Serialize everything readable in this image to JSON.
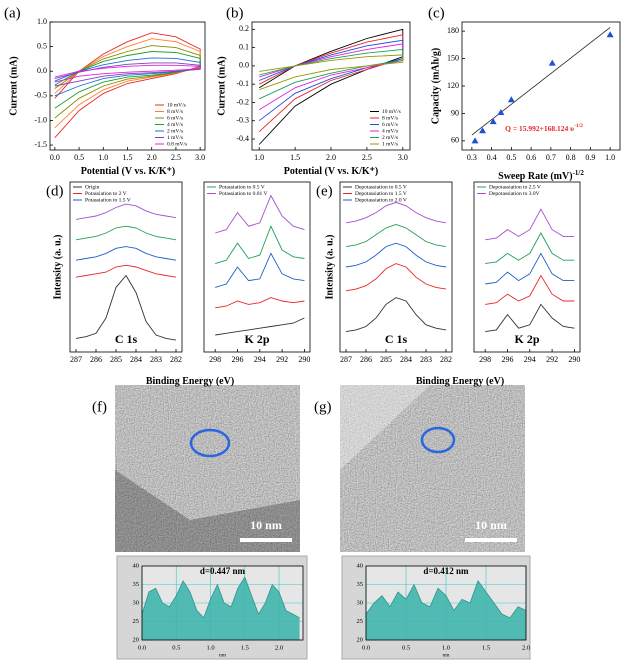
{
  "chart_data": [
    {
      "type": "line",
      "panel": "(a)",
      "xlabel": "Potential (V vs. K/K⁺)",
      "ylabel": "Current (mA)",
      "x": [
        0,
        0.5,
        1,
        1.5,
        2,
        2.5,
        3,
        3,
        2.5,
        2,
        1.5,
        1,
        0.5,
        0
      ],
      "xlim": [
        -0.1,
        3.1
      ],
      "xticks": [
        {
          "value": 0,
          "label": "0.0"
        },
        0.5,
        {
          "value": 1,
          "label": "1.0"
        },
        1.5,
        {
          "value": 2,
          "label": "2.0"
        },
        2.5,
        {
          "value": 3,
          "label": "3.0"
        }
      ],
      "ylim": [
        -1.6,
        1.0
      ],
      "yticks": [
        -1.5,
        {
          "value": -1,
          "label": "-1.0"
        },
        -0.5,
        {
          "value": 0,
          "label": "0.0"
        },
        0.5,
        {
          "value": 1,
          "label": "1.0"
        }
      ],
      "legend": "lower right",
      "series": [
        {
          "name": "10 mV/s",
          "color": "#e8262a",
          "values": [
            -0.55,
            0.0,
            0.35,
            0.6,
            0.78,
            0.7,
            0.45,
            0.1,
            -0.05,
            -0.15,
            -0.25,
            -0.45,
            -0.8,
            -1.35
          ]
        },
        {
          "name": "8 mV/s",
          "color": "#ff7f27",
          "values": [
            -0.45,
            0.0,
            0.3,
            0.5,
            0.66,
            0.6,
            0.4,
            0.08,
            -0.04,
            -0.12,
            -0.2,
            -0.38,
            -0.68,
            -1.15
          ]
        },
        {
          "name": "6 mV/s",
          "color": "#8a8a00",
          "values": [
            -0.35,
            0.0,
            0.25,
            0.4,
            0.52,
            0.48,
            0.32,
            0.07,
            -0.03,
            -0.1,
            -0.16,
            -0.3,
            -0.55,
            -0.95
          ]
        },
        {
          "name": "4 mV/s",
          "color": "#22a02c",
          "values": [
            -0.28,
            0.0,
            0.2,
            0.32,
            0.4,
            0.38,
            0.26,
            0.06,
            -0.02,
            -0.08,
            -0.12,
            -0.22,
            -0.42,
            -0.75
          ]
        },
        {
          "name": "2 mV/s",
          "color": "#1e6fd9",
          "values": [
            -0.2,
            0.0,
            0.13,
            0.22,
            0.27,
            0.26,
            0.18,
            0.05,
            -0.01,
            -0.05,
            -0.08,
            -0.15,
            -0.3,
            -0.5
          ]
        },
        {
          "name": "1 mV/s",
          "color": "#7f3fbf",
          "values": [
            -0.15,
            -0.02,
            0.08,
            0.14,
            0.17,
            0.17,
            0.12,
            0.04,
            0.0,
            -0.03,
            -0.05,
            -0.1,
            -0.2,
            -0.3
          ]
        },
        {
          "name": "0.8 mV/s",
          "color": "#e020e0",
          "values": [
            -0.12,
            0.0,
            0.06,
            0.1,
            0.12,
            0.12,
            0.1,
            0.05,
            0.02,
            0.0,
            -0.02,
            -0.05,
            -0.1,
            -0.22
          ]
        }
      ]
    },
    {
      "type": "line",
      "panel": "(b)",
      "xlabel": "Potential (V vs. K/K⁺)",
      "ylabel": "Current (mA)",
      "x": [
        1,
        1.5,
        2,
        2.5,
        3,
        3,
        2.5,
        2,
        1.5,
        1
      ],
      "xlim": [
        0.9,
        3.1
      ],
      "xticks": [
        {
          "value": 1,
          "label": "1.0"
        },
        1.5,
        {
          "value": 2,
          "label": "2.0"
        },
        2.5,
        {
          "value": 3,
          "label": "3.0"
        }
      ],
      "ylim": [
        -0.46,
        0.24
      ],
      "yticks": [
        -0.4,
        -0.3,
        -0.2,
        -0.1,
        {
          "value": 0,
          "label": "0.0"
        },
        0.1,
        0.2
      ],
      "legend": "lower right",
      "series": [
        {
          "name": "10 mV/s",
          "color": "#000000",
          "values": [
            -0.12,
            0.0,
            0.08,
            0.15,
            0.2,
            0.05,
            -0.02,
            -0.1,
            -0.22,
            -0.43
          ]
        },
        {
          "name": "8 mV/s",
          "color": "#e8262a",
          "values": [
            -0.1,
            0.0,
            0.07,
            0.13,
            0.17,
            0.04,
            -0.02,
            -0.08,
            -0.18,
            -0.36
          ]
        },
        {
          "name": "6 mV/s",
          "color": "#1e4fd9",
          "values": [
            -0.08,
            0.0,
            0.06,
            0.11,
            0.14,
            0.04,
            -0.01,
            -0.07,
            -0.15,
            -0.3
          ]
        },
        {
          "name": "4 mV/s",
          "color": "#e020e0",
          "values": [
            -0.06,
            0.0,
            0.05,
            0.09,
            0.12,
            0.03,
            -0.01,
            -0.05,
            -0.12,
            -0.24
          ]
        },
        {
          "name": "2 mV/s",
          "color": "#1ca05a",
          "values": [
            -0.05,
            0.0,
            0.04,
            0.07,
            0.09,
            0.03,
            0.0,
            -0.04,
            -0.09,
            -0.18
          ]
        },
        {
          "name": "1 mV/s",
          "color": "#9a9a00",
          "values": [
            -0.03,
            0.0,
            0.03,
            0.05,
            0.06,
            0.02,
            0.0,
            -0.02,
            -0.06,
            -0.13
          ]
        }
      ]
    },
    {
      "type": "scatter",
      "panel": "(c)",
      "xlabel": "Sweep Rate (mV)",
      "xlabel_sup": "-1/2",
      "ylabel": "Capacity (mAh/g)",
      "annotation": "Q = 15.992+168.124 υ",
      "annotation_sup": "-1/2",
      "x": [
        0.316,
        0.354,
        0.408,
        0.447,
        0.5,
        0.707,
        1.0
      ],
      "values": [
        60,
        71,
        81,
        91,
        105,
        145,
        176
      ],
      "color": "#1f4fd6",
      "fit": {
        "x": [
          0.3,
          1.0
        ],
        "values": [
          66.4,
          184.1
        ]
      },
      "xlim": [
        0.25,
        1.05
      ],
      "xticks": [
        0.3,
        0.4,
        0.5,
        0.6,
        0.7,
        0.8,
        0.9,
        {
          "value": 1,
          "label": "1.0"
        }
      ],
      "ylim": [
        50,
        190
      ],
      "yticks": [
        60,
        90,
        120,
        150,
        180
      ]
    },
    {
      "type": "line",
      "panel": "(d)",
      "label": "C 1s",
      "xlabel": "Binding Energy (eV)",
      "ylabel": "Intensity (a. u.)",
      "x": [
        287,
        286.5,
        286,
        285.5,
        285,
        284.5,
        284,
        283.5,
        283,
        282.5,
        282
      ],
      "xlim": [
        287.3,
        281.7
      ],
      "xticks": [
        287,
        286,
        285,
        284,
        283,
        282
      ],
      "ylim": [
        0,
        100
      ],
      "legend": "upper left",
      "series": [
        {
          "name": "Origin",
          "color": "#333333",
          "values": [
            8,
            9,
            11,
            20,
            38,
            45,
            35,
            18,
            10,
            8,
            7
          ]
        },
        {
          "name": "Potassiation to 2 V",
          "color": "#e8262a",
          "values": [
            44,
            45,
            46,
            47,
            50,
            51,
            50,
            48,
            46,
            45,
            44
          ]
        },
        {
          "name": "Potassiation to 1.5 V",
          "color": "#1e5fc9",
          "values": [
            54,
            55,
            56,
            58,
            61,
            62,
            61,
            58,
            56,
            55,
            54
          ]
        },
        {
          "color": "#22a05a",
          "values": [
            66,
            67,
            68,
            70,
            73,
            74,
            73,
            70,
            68,
            67,
            66
          ]
        },
        {
          "color": "#a64fd0",
          "values": [
            78,
            79,
            80,
            82,
            85,
            87,
            86,
            83,
            81,
            80,
            79
          ]
        }
      ]
    },
    {
      "type": "line",
      "label": "K 2p",
      "x": [
        298,
        297,
        296,
        295,
        294,
        293,
        292,
        291,
        290
      ],
      "xlim": [
        299,
        289.5
      ],
      "xticks": [
        298,
        296,
        294,
        292,
        290
      ],
      "ylim": [
        0,
        100
      ],
      "legend": "upper left",
      "series": [
        {
          "color": "#333333",
          "values": [
            10,
            11,
            12,
            13,
            14,
            15,
            16,
            17,
            20
          ]
        },
        {
          "color": "#e8262a",
          "values": [
            26,
            27,
            30,
            28,
            29,
            32,
            30,
            29,
            30
          ]
        },
        {
          "color": "#1e5fc9",
          "values": [
            38,
            40,
            50,
            42,
            43,
            58,
            46,
            43,
            42
          ]
        },
        {
          "name": "Potassiation to 0.5 V",
          "color": "#22a05a",
          "values": [
            52,
            54,
            64,
            55,
            57,
            74,
            60,
            56,
            55
          ]
        },
        {
          "name": "Potassiation to 0.01 V",
          "color": "#a64fd0",
          "values": [
            70,
            72,
            82,
            74,
            76,
            92,
            80,
            74,
            72
          ]
        }
      ]
    },
    {
      "type": "line",
      "panel": "(e)",
      "label": "C 1s",
      "xlabel": "Binding Energy (eV)",
      "ylabel": "Intensity (a. u.)",
      "x": [
        287,
        286.5,
        286,
        285.5,
        285,
        284.5,
        284,
        283.5,
        283,
        282.5,
        282
      ],
      "xlim": [
        287.3,
        281.7
      ],
      "xticks": [
        287,
        286,
        285,
        284,
        283,
        282
      ],
      "ylim": [
        0,
        100
      ],
      "legend": "upper left",
      "series": [
        {
          "name": "Depotassiation to 0.5 V",
          "color": "#333333",
          "values": [
            12,
            13,
            15,
            20,
            28,
            32,
            30,
            22,
            16,
            14,
            13
          ]
        },
        {
          "name": "Depotassiation to 1.5 V",
          "color": "#e8262a",
          "values": [
            36,
            37,
            39,
            43,
            49,
            52,
            50,
            44,
            40,
            38,
            37
          ]
        },
        {
          "name": "Depotassiation to 2.0 V",
          "color": "#1e5fc9",
          "values": [
            50,
            51,
            53,
            57,
            62,
            64,
            62,
            57,
            53,
            51,
            50
          ]
        },
        {
          "color": "#22a05a",
          "values": [
            62,
            63,
            65,
            69,
            73,
            75,
            73,
            69,
            65,
            63,
            62
          ]
        },
        {
          "color": "#a64fd0",
          "values": [
            76,
            77,
            79,
            82,
            86,
            88,
            86,
            82,
            79,
            77,
            76
          ]
        }
      ]
    },
    {
      "type": "line",
      "label": "K 2p",
      "x": [
        298,
        297,
        296,
        295,
        294,
        293,
        292,
        291,
        290
      ],
      "xlim": [
        299,
        289.5
      ],
      "xticks": [
        298,
        296,
        294,
        292,
        290
      ],
      "ylim": [
        0,
        100
      ],
      "legend": "upper left",
      "series": [
        {
          "color": "#333333",
          "values": [
            12,
            13,
            22,
            14,
            16,
            28,
            20,
            15,
            14
          ]
        },
        {
          "color": "#e8262a",
          "values": [
            28,
            29,
            34,
            30,
            33,
            45,
            34,
            30,
            30
          ]
        },
        {
          "color": "#1e5fc9",
          "values": [
            40,
            41,
            47,
            42,
            46,
            58,
            46,
            42,
            42
          ]
        },
        {
          "name": "Depotassiation to 2.5 V",
          "color": "#22a05a",
          "values": [
            52,
            53,
            58,
            54,
            58,
            70,
            58,
            54,
            54
          ]
        },
        {
          "name": "Depotassiation to 3.0V",
          "color": "#a64fd0",
          "values": [
            66,
            67,
            72,
            68,
            72,
            84,
            72,
            68,
            68
          ]
        }
      ]
    },
    {
      "type": "area",
      "annotation": "d=0.447 nm",
      "xlabel": "nm",
      "color": "#3fb5ad",
      "grid": true,
      "x": [
        0,
        0.1,
        0.2,
        0.3,
        0.4,
        0.5,
        0.6,
        0.7,
        0.8,
        0.9,
        1.0,
        1.1,
        1.2,
        1.3,
        1.4,
        1.5,
        1.6,
        1.7,
        1.8,
        1.9,
        2.0,
        2.1,
        2.2,
        2.3
      ],
      "values": [
        27,
        33,
        34,
        30,
        29,
        32,
        36,
        33,
        28,
        26,
        31,
        35,
        30,
        29,
        34,
        37,
        32,
        27,
        30,
        35,
        33,
        28,
        27,
        26
      ],
      "xlim": [
        0,
        2.35
      ],
      "xticks": [
        {
          "value": 0,
          "label": "0.0"
        },
        0.5,
        {
          "value": 1,
          "label": "1.0"
        },
        1.5,
        {
          "value": 2,
          "label": "2.0"
        }
      ],
      "ylim": [
        20,
        40
      ],
      "yticks": [
        20,
        25,
        30,
        35,
        40
      ]
    },
    {
      "type": "area",
      "annotation": "d=0.412 nm",
      "xlabel": "nm",
      "color": "#3fb5ad",
      "grid": true,
      "x": [
        0,
        0.1,
        0.2,
        0.3,
        0.4,
        0.5,
        0.6,
        0.7,
        0.8,
        0.9,
        1.0,
        1.1,
        1.2,
        1.3,
        1.4,
        1.5,
        1.6,
        1.7,
        1.8,
        1.9,
        2.0
      ],
      "values": [
        27,
        30,
        32,
        29,
        33,
        31,
        35,
        30,
        29,
        34,
        32,
        28,
        31,
        30,
        36,
        33,
        30,
        27,
        26,
        29,
        28
      ],
      "xlim": [
        0,
        2.0
      ],
      "xticks": [
        {
          "value": 0,
          "label": "0.0"
        },
        0.5,
        {
          "value": 1,
          "label": "1.0"
        },
        1.5,
        {
          "value": 2,
          "label": "2.0"
        }
      ],
      "ylim": [
        20,
        40
      ],
      "yticks": [
        20,
        25,
        30,
        35,
        40
      ]
    }
  ],
  "images": [
    {
      "panel": "(f)",
      "scale": "10 nm"
    },
    {
      "panel": "(g)",
      "scale": "10 nm"
    }
  ]
}
